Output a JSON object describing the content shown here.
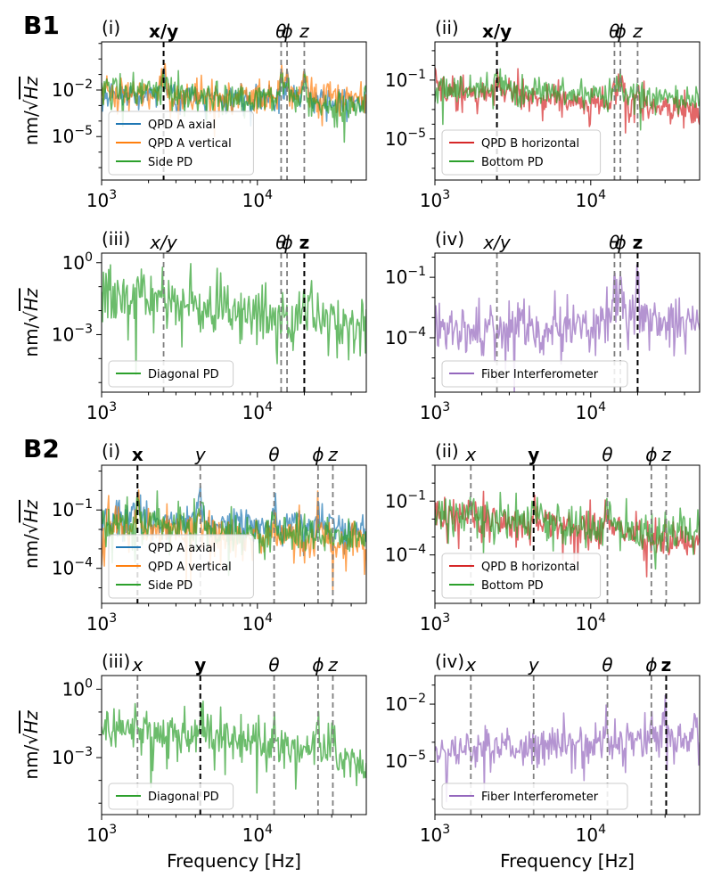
{
  "figure": {
    "blocks": [
      {
        "label": "B1"
      },
      {
        "label": "B2"
      }
    ],
    "xlabel": "Frequency [Hz]",
    "ylabel_main": "nm/",
    "ylabel_sqrt": "Hz",
    "x_tick_labels": [
      {
        "base": "10",
        "exp": "3"
      },
      {
        "base": "10",
        "exp": "4"
      }
    ]
  },
  "chart_data": [
    {
      "id": "B1-i",
      "type": "line",
      "panel": "(i)",
      "block": "B1",
      "xlim": [
        1000,
        50000
      ],
      "ylim_log10": [
        -7.8,
        1.1
      ],
      "yticks": [
        {
          "base": "10",
          "exp": "−2",
          "value_log10": -2
        },
        {
          "base": "10",
          "exp": "−5",
          "value_log10": -5
        }
      ],
      "modes": [
        {
          "label": "x/y",
          "f": 2500,
          "bold": true,
          "italic": false,
          "dominant": true
        },
        {
          "label": "θ",
          "f": 14200,
          "bold": false,
          "italic": true,
          "dominant": false
        },
        {
          "label": "ϕ",
          "f": 15500,
          "bold": false,
          "italic": true,
          "dominant": false
        },
        {
          "label": "z",
          "f": 20000,
          "bold": false,
          "italic": true,
          "dominant": false
        }
      ],
      "series": [
        {
          "name": "QPD A axial",
          "color": "#1f77b4",
          "base": -2.3,
          "slope": -0.25,
          "noise": 0.8,
          "peaks": [
            [
              2500,
              1.3
            ],
            [
              4800,
              0.4
            ],
            [
              14200,
              1.4
            ],
            [
              15500,
              1.2
            ],
            [
              20000,
              1.5
            ]
          ]
        },
        {
          "name": "QPD A vertical",
          "color": "#ff7f0e",
          "base": -2.2,
          "slope": -0.25,
          "noise": 0.9,
          "peaks": [
            [
              2500,
              1.3
            ],
            [
              14200,
              1.4
            ],
            [
              15500,
              1.3
            ],
            [
              20000,
              1.6
            ]
          ]
        },
        {
          "name": "Side PD",
          "color": "#2ca02c",
          "base": -2.0,
          "slope": -0.6,
          "noise": 1.0,
          "peaks": [
            [
              2500,
              1.4
            ],
            [
              4800,
              0.5
            ],
            [
              14200,
              1.2
            ],
            [
              15500,
              1.1
            ],
            [
              20000,
              1.3
            ]
          ]
        }
      ]
    },
    {
      "id": "B1-ii",
      "type": "line",
      "panel": "(ii)",
      "block": "B1",
      "xlim": [
        1000,
        50000
      ],
      "ylim_log10": [
        -7.8,
        1.6
      ],
      "yticks": [
        {
          "base": "10",
          "exp": "−1",
          "value_log10": -1
        },
        {
          "base": "10",
          "exp": "−5",
          "value_log10": -5
        }
      ],
      "modes": [
        {
          "label": "x/y",
          "f": 2500,
          "bold": true,
          "italic": false,
          "dominant": true
        },
        {
          "label": "θ",
          "f": 14200,
          "bold": false,
          "italic": true,
          "dominant": false
        },
        {
          "label": "ϕ",
          "f": 15500,
          "bold": false,
          "italic": true,
          "dominant": false
        },
        {
          "label": "z",
          "f": 20000,
          "bold": false,
          "italic": true,
          "dominant": false
        }
      ],
      "series": [
        {
          "name": "QPD B horizontal",
          "color": "#d62728",
          "base": -1.6,
          "slope": -0.9,
          "noise": 1.0,
          "peaks": [
            [
              2500,
              1.2
            ],
            [
              14200,
              1.2
            ],
            [
              15500,
              1.6
            ],
            [
              20000,
              0.8
            ]
          ]
        },
        {
          "name": "Bottom PD",
          "color": "#2ca02c",
          "base": -1.5,
          "slope": -0.5,
          "noise": 0.9,
          "peaks": [
            [
              2500,
              1.2
            ],
            [
              4800,
              0.3
            ],
            [
              14200,
              0.9
            ],
            [
              15500,
              1.2
            ],
            [
              20000,
              0.6
            ]
          ]
        }
      ]
    },
    {
      "id": "B1-iii",
      "type": "line",
      "panel": "(iii)",
      "block": "B1",
      "xlim": [
        1000,
        50000
      ],
      "ylim_log10": [
        -5.4,
        0.4
      ],
      "yticks": [
        {
          "base": "10",
          "exp": "0",
          "value_log10": 0
        },
        {
          "base": "10",
          "exp": "−3",
          "value_log10": -3
        }
      ],
      "modes": [
        {
          "label": "x/y",
          "f": 2500,
          "bold": false,
          "italic": true,
          "dominant": false
        },
        {
          "label": "θ",
          "f": 14200,
          "bold": false,
          "italic": true,
          "dominant": false
        },
        {
          "label": "ϕ",
          "f": 15500,
          "bold": false,
          "italic": true,
          "dominant": false
        },
        {
          "label": "z",
          "f": 20000,
          "bold": true,
          "italic": false,
          "dominant": true
        }
      ],
      "series": [
        {
          "name": "Diagonal PD",
          "color": "#2ca02c",
          "base": -1.2,
          "slope": -1.0,
          "noise": 1.1,
          "peaks": [
            [
              20000,
              0.9
            ],
            [
              14200,
              0.3
            ]
          ]
        }
      ]
    },
    {
      "id": "B1-iv",
      "type": "line",
      "panel": "(iv)",
      "block": "B1",
      "xlim": [
        1000,
        50000
      ],
      "ylim_log10": [
        -6.7,
        0.2
      ],
      "yticks": [
        {
          "base": "10",
          "exp": "−1",
          "value_log10": -1
        },
        {
          "base": "10",
          "exp": "−4",
          "value_log10": -4
        }
      ],
      "modes": [
        {
          "label": "x/y",
          "f": 2500,
          "bold": false,
          "italic": true,
          "dominant": false
        },
        {
          "label": "θ",
          "f": 14200,
          "bold": false,
          "italic": true,
          "dominant": false
        },
        {
          "label": "ϕ",
          "f": 15500,
          "bold": false,
          "italic": true,
          "dominant": false
        },
        {
          "label": "z",
          "f": 20000,
          "bold": true,
          "italic": false,
          "dominant": true
        }
      ],
      "series": [
        {
          "name": "Fiber Interferometer",
          "color": "#9467bd",
          "base": -3.6,
          "slope": 0.2,
          "noise": 1.2,
          "peaks": [
            [
              14200,
              1.8
            ],
            [
              15500,
              2.1
            ],
            [
              20000,
              2.6
            ]
          ]
        }
      ]
    },
    {
      "id": "B2-i",
      "type": "line",
      "panel": "(i)",
      "block": "B2",
      "xlim": [
        1000,
        50000
      ],
      "ylim_log10": [
        -5.8,
        1.3
      ],
      "yticks": [
        {
          "base": "10",
          "exp": "−1",
          "value_log10": -1
        },
        {
          "base": "10",
          "exp": "−4",
          "value_log10": -4
        }
      ],
      "modes": [
        {
          "label": "x",
          "f": 1700,
          "bold": true,
          "italic": false,
          "dominant": true
        },
        {
          "label": "y",
          "f": 4300,
          "bold": false,
          "italic": true,
          "dominant": false
        },
        {
          "label": "θ",
          "f": 12800,
          "bold": false,
          "italic": true,
          "dominant": false
        },
        {
          "label": "ϕ",
          "f": 24500,
          "bold": false,
          "italic": true,
          "dominant": false
        },
        {
          "label": "z",
          "f": 30500,
          "bold": false,
          "italic": true,
          "dominant": false
        }
      ],
      "series": [
        {
          "name": "QPD A axial",
          "color": "#1f77b4",
          "base": -1.4,
          "slope": -0.4,
          "noise": 0.8,
          "peaks": [
            [
              1700,
              1.0
            ],
            [
              4300,
              1.5
            ],
            [
              8500,
              0.6
            ],
            [
              12800,
              1.0
            ],
            [
              17000,
              0.5
            ],
            [
              24500,
              0.8
            ],
            [
              30500,
              0.6
            ]
          ]
        },
        {
          "name": "QPD A vertical",
          "color": "#ff7f0e",
          "base": -1.8,
          "slope": -0.6,
          "noise": 1.0,
          "peaks": [
            [
              1700,
              1.2
            ],
            [
              4300,
              1.1
            ],
            [
              12800,
              1.0
            ],
            [
              24500,
              0.9
            ]
          ]
        },
        {
          "name": "Side PD",
          "color": "#2ca02c",
          "base": -1.6,
          "slope": -0.5,
          "noise": 0.9,
          "peaks": [
            [
              1700,
              1.0
            ],
            [
              4300,
              1.2
            ],
            [
              12800,
              0.8
            ]
          ]
        }
      ]
    },
    {
      "id": "B2-ii",
      "type": "line",
      "panel": "(ii)",
      "block": "B2",
      "xlim": [
        1000,
        50000
      ],
      "ylim_log10": [
        -6.7,
        1.0
      ],
      "yticks": [
        {
          "base": "10",
          "exp": "−1",
          "value_log10": -1
        },
        {
          "base": "10",
          "exp": "−4",
          "value_log10": -4
        }
      ],
      "modes": [
        {
          "label": "x",
          "f": 1700,
          "bold": false,
          "italic": true,
          "dominant": false
        },
        {
          "label": "y",
          "f": 4300,
          "bold": true,
          "italic": false,
          "dominant": true
        },
        {
          "label": "θ",
          "f": 12800,
          "bold": false,
          "italic": true,
          "dominant": false
        },
        {
          "label": "ϕ",
          "f": 24500,
          "bold": false,
          "italic": true,
          "dominant": false
        },
        {
          "label": "z",
          "f": 30500,
          "bold": false,
          "italic": true,
          "dominant": false
        }
      ],
      "series": [
        {
          "name": "QPD B horizontal",
          "color": "#d62728",
          "base": -1.7,
          "slope": -0.9,
          "noise": 1.0,
          "peaks": [
            [
              1700,
              0.8
            ],
            [
              4300,
              1.6
            ],
            [
              12800,
              1.5
            ]
          ]
        },
        {
          "name": "Bottom PD",
          "color": "#2ca02c",
          "base": -1.6,
          "slope": -0.9,
          "noise": 1.1,
          "peaks": [
            [
              1700,
              0.8
            ],
            [
              4300,
              1.5
            ],
            [
              12800,
              1.4
            ],
            [
              38000,
              1.0
            ]
          ]
        }
      ]
    },
    {
      "id": "B2-iii",
      "type": "line",
      "panel": "(iii)",
      "block": "B2",
      "xlim": [
        1000,
        50000
      ],
      "ylim_log10": [
        -5.5,
        0.6
      ],
      "yticks": [
        {
          "base": "10",
          "exp": "0",
          "value_log10": 0
        },
        {
          "base": "10",
          "exp": "−3",
          "value_log10": -3
        }
      ],
      "modes": [
        {
          "label": "x",
          "f": 1700,
          "bold": false,
          "italic": true,
          "dominant": false
        },
        {
          "label": "y",
          "f": 4300,
          "bold": true,
          "italic": false,
          "dominant": true
        },
        {
          "label": "θ",
          "f": 12800,
          "bold": false,
          "italic": true,
          "dominant": false
        },
        {
          "label": "ϕ",
          "f": 24500,
          "bold": false,
          "italic": true,
          "dominant": false
        },
        {
          "label": "z",
          "f": 30500,
          "bold": false,
          "italic": true,
          "dominant": false
        }
      ],
      "series": [
        {
          "name": "Diagonal PD",
          "color": "#2ca02c",
          "base": -1.5,
          "slope": -1.0,
          "noise": 1.0,
          "peaks": [
            [
              4300,
              1.6
            ],
            [
              12800,
              1.2
            ],
            [
              24500,
              1.2
            ],
            [
              30500,
              1.1
            ]
          ]
        }
      ]
    },
    {
      "id": "B2-iv",
      "type": "line",
      "panel": "(iv)",
      "block": "B2",
      "xlim": [
        1000,
        50000
      ],
      "ylim_log10": [
        -7.8,
        -0.5
      ],
      "yticks": [
        {
          "base": "10",
          "exp": "−2",
          "value_log10": -2
        },
        {
          "base": "10",
          "exp": "−5",
          "value_log10": -5
        }
      ],
      "modes": [
        {
          "label": "x",
          "f": 1700,
          "bold": false,
          "italic": true,
          "dominant": false
        },
        {
          "label": "y",
          "f": 4300,
          "bold": false,
          "italic": true,
          "dominant": false
        },
        {
          "label": "θ",
          "f": 12800,
          "bold": false,
          "italic": true,
          "dominant": false
        },
        {
          "label": "ϕ",
          "f": 24500,
          "bold": false,
          "italic": true,
          "dominant": false
        },
        {
          "label": "z",
          "f": 30500,
          "bold": true,
          "italic": false,
          "dominant": true
        }
      ],
      "series": [
        {
          "name": "Fiber Interferometer",
          "color": "#9467bd",
          "base": -4.4,
          "slope": 0.3,
          "noise": 1.0,
          "peaks": [
            [
              3000,
              0.4
            ],
            [
              12800,
              1.3
            ],
            [
              24500,
              1.4
            ],
            [
              30500,
              1.6
            ]
          ]
        }
      ]
    }
  ]
}
